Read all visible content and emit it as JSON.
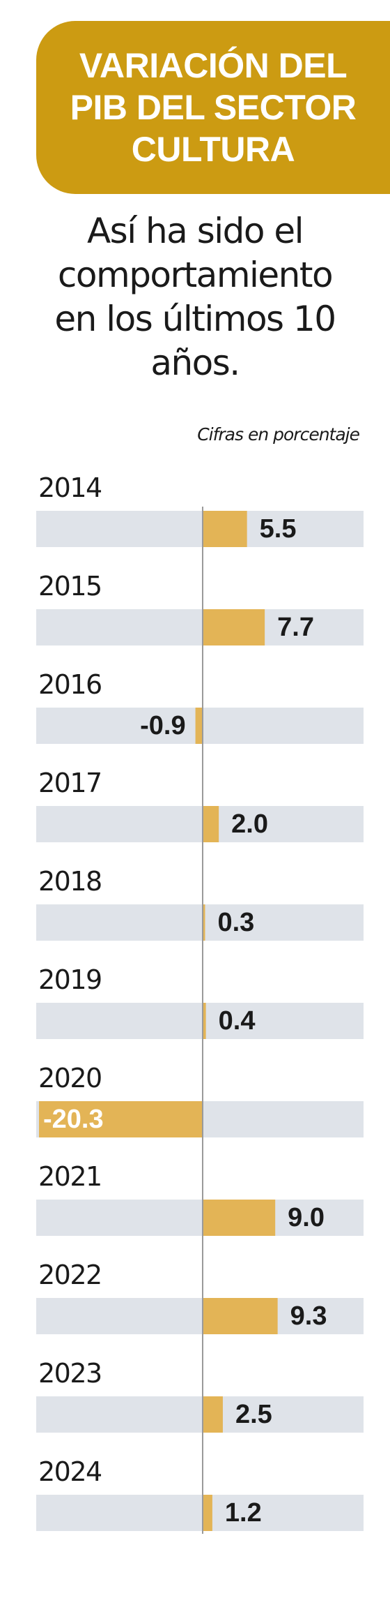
{
  "header": {
    "title": "VARIACIÓN DEL PIB DEL SECTOR CULTURA",
    "subtitle": "Así ha sido el comportamiento en los últimos 10 años.",
    "units_note": "Cifras en porcentaje"
  },
  "colors": {
    "banner": "#cc9b12",
    "bar": "#e3b456",
    "track": "#dfe3e9",
    "axis": "#9a9a9a",
    "text": "#1a1a1a",
    "background": "#ffffff"
  },
  "chart_data": {
    "type": "bar",
    "orientation": "horizontal",
    "title": "VARIACIÓN DEL PIB DEL SECTOR CULTURA",
    "subtitle": "Así ha sido el comportamiento en los últimos 10 años.",
    "unit": "Cifras en porcentaje",
    "categories": [
      "2014",
      "2015",
      "2016",
      "2017",
      "2018",
      "2019",
      "2020",
      "2021",
      "2022",
      "2023",
      "2024"
    ],
    "values": [
      5.5,
      7.7,
      -0.9,
      2.0,
      0.3,
      0.4,
      -20.3,
      9.0,
      9.3,
      2.5,
      1.2
    ],
    "value_labels": [
      "5.5",
      "7.7",
      "-0.9",
      "2.0",
      "0.3",
      "0.4",
      "-20.3",
      "9.0",
      "9.3",
      "2.5",
      "1.2"
    ],
    "xlim": [
      -20.3,
      20.3
    ],
    "grid": false,
    "legend": "none"
  }
}
